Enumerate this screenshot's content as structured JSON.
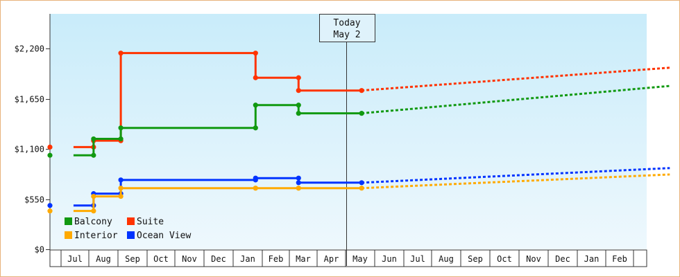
{
  "chart_data": {
    "type": "line",
    "today_label_line1": "Today",
    "today_label_line2": "May 2",
    "y_ticks": [
      0,
      550,
      1100,
      1650,
      2200
    ],
    "y_tick_labels": [
      "$0",
      "$550",
      "$1,100",
      "$1,650",
      "$2,200"
    ],
    "ylim": [
      0,
      2580
    ],
    "x_months": [
      "",
      "Jul",
      "Aug",
      "Sep",
      "Oct",
      "Nov",
      "Dec",
      "Jan",
      "Feb",
      "Mar",
      "Apr",
      "May",
      "Jun",
      "Jul",
      "Aug",
      "Sep",
      "Oct",
      "Nov",
      "Dec",
      "Jan",
      "Feb",
      ""
    ],
    "today_month_index": 10,
    "legend": [
      {
        "name": "Balcony",
        "color": "#119911"
      },
      {
        "name": "Suite",
        "color": "#ff3300"
      },
      {
        "name": "Interior",
        "color": "#ffaa00"
      },
      {
        "name": "Ocean View",
        "color": "#0033ff"
      }
    ],
    "series": [
      {
        "name": "Suite",
        "color": "#ff3300",
        "history": [
          [
            -0.05,
            1120
          ],
          [
            0.65,
            1120
          ],
          [
            0.65,
            1190
          ],
          [
            1.6,
            1190
          ],
          [
            1.6,
            2150
          ],
          [
            6.3,
            2150
          ],
          [
            6.3,
            1880
          ],
          [
            7.8,
            1880
          ],
          [
            7.8,
            1740
          ],
          [
            10.0,
            1740
          ]
        ],
        "forecast": [
          [
            10.0,
            1740
          ],
          [
            20.75,
            1990
          ]
        ]
      },
      {
        "name": "Balcony",
        "color": "#119911",
        "history": [
          [
            -0.05,
            1030
          ],
          [
            0.65,
            1030
          ],
          [
            0.65,
            1210
          ],
          [
            1.6,
            1210
          ],
          [
            1.6,
            1330
          ],
          [
            6.3,
            1330
          ],
          [
            6.3,
            1580
          ],
          [
            7.8,
            1580
          ],
          [
            7.8,
            1490
          ],
          [
            10.0,
            1490
          ]
        ],
        "forecast": [
          [
            10.0,
            1490
          ],
          [
            20.75,
            1790
          ]
        ]
      },
      {
        "name": "Ocean View",
        "color": "#0033ff",
        "history": [
          [
            -0.05,
            480
          ],
          [
            0.65,
            480
          ],
          [
            0.65,
            610
          ],
          [
            1.6,
            610
          ],
          [
            1.6,
            760
          ],
          [
            6.3,
            760
          ],
          [
            6.3,
            780
          ],
          [
            7.8,
            780
          ],
          [
            7.8,
            730
          ],
          [
            10.0,
            730
          ]
        ],
        "forecast": [
          [
            10.0,
            730
          ],
          [
            20.75,
            890
          ]
        ]
      },
      {
        "name": "Interior",
        "color": "#ffaa00",
        "history": [
          [
            -0.05,
            420
          ],
          [
            0.65,
            420
          ],
          [
            0.65,
            580
          ],
          [
            1.6,
            580
          ],
          [
            1.6,
            670
          ],
          [
            6.3,
            670
          ],
          [
            6.3,
            670
          ],
          [
            7.8,
            670
          ],
          [
            7.8,
            670
          ],
          [
            10.0,
            670
          ]
        ],
        "forecast": [
          [
            10.0,
            670
          ],
          [
            20.75,
            820
          ]
        ]
      }
    ]
  }
}
